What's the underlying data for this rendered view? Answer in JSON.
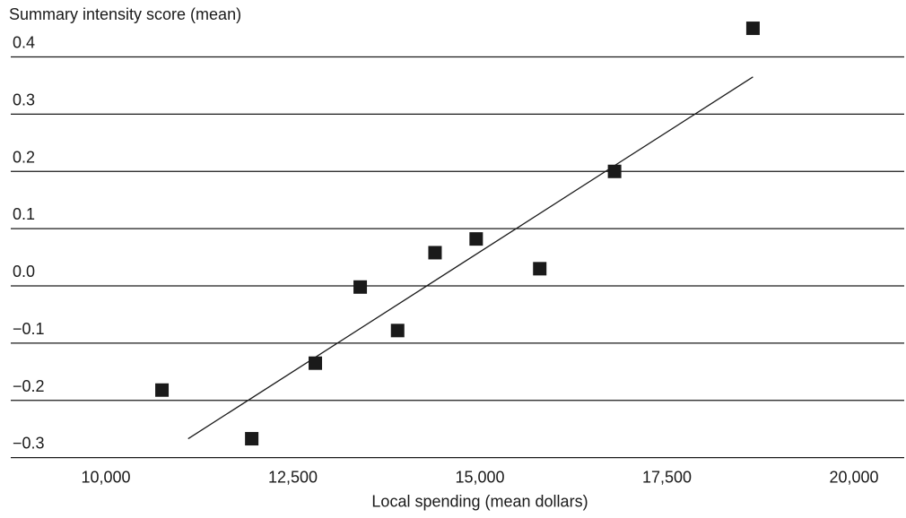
{
  "chart_data": {
    "type": "scatter",
    "title": "",
    "ylabel": "Summary intensity score (mean)",
    "xlabel": "Local spending (mean dollars)",
    "xlim": [
      9000,
      20500
    ],
    "ylim": [
      -0.33,
      0.46
    ],
    "x_ticks": [
      10000,
      12500,
      15000,
      17500,
      20000
    ],
    "x_tick_labels": [
      "10,000",
      "12,500",
      "15,000",
      "17,500",
      "20,000"
    ],
    "y_ticks": [
      0.4,
      0.3,
      0.2,
      0.1,
      0.0,
      -0.1,
      -0.2,
      -0.3
    ],
    "y_tick_labels": [
      "0.4",
      "0.3",
      "0.2",
      "0.1",
      "0.0",
      "−0.1",
      "−0.2",
      "−0.3"
    ],
    "grid": "horizontal",
    "series": [
      {
        "marker": "square",
        "color": "#1a1a1a",
        "points": [
          {
            "x": 10750,
            "y": -0.182
          },
          {
            "x": 11950,
            "y": -0.267
          },
          {
            "x": 12800,
            "y": -0.135
          },
          {
            "x": 13400,
            "y": -0.002
          },
          {
            "x": 13900,
            "y": -0.078
          },
          {
            "x": 14400,
            "y": 0.058
          },
          {
            "x": 14950,
            "y": 0.082
          },
          {
            "x": 15800,
            "y": 0.03
          },
          {
            "x": 16800,
            "y": 0.2
          },
          {
            "x": 18650,
            "y": 0.45
          }
        ]
      }
    ],
    "trendline": {
      "x": [
        11100,
        18650
      ],
      "y": [
        -0.267,
        0.365
      ]
    }
  }
}
